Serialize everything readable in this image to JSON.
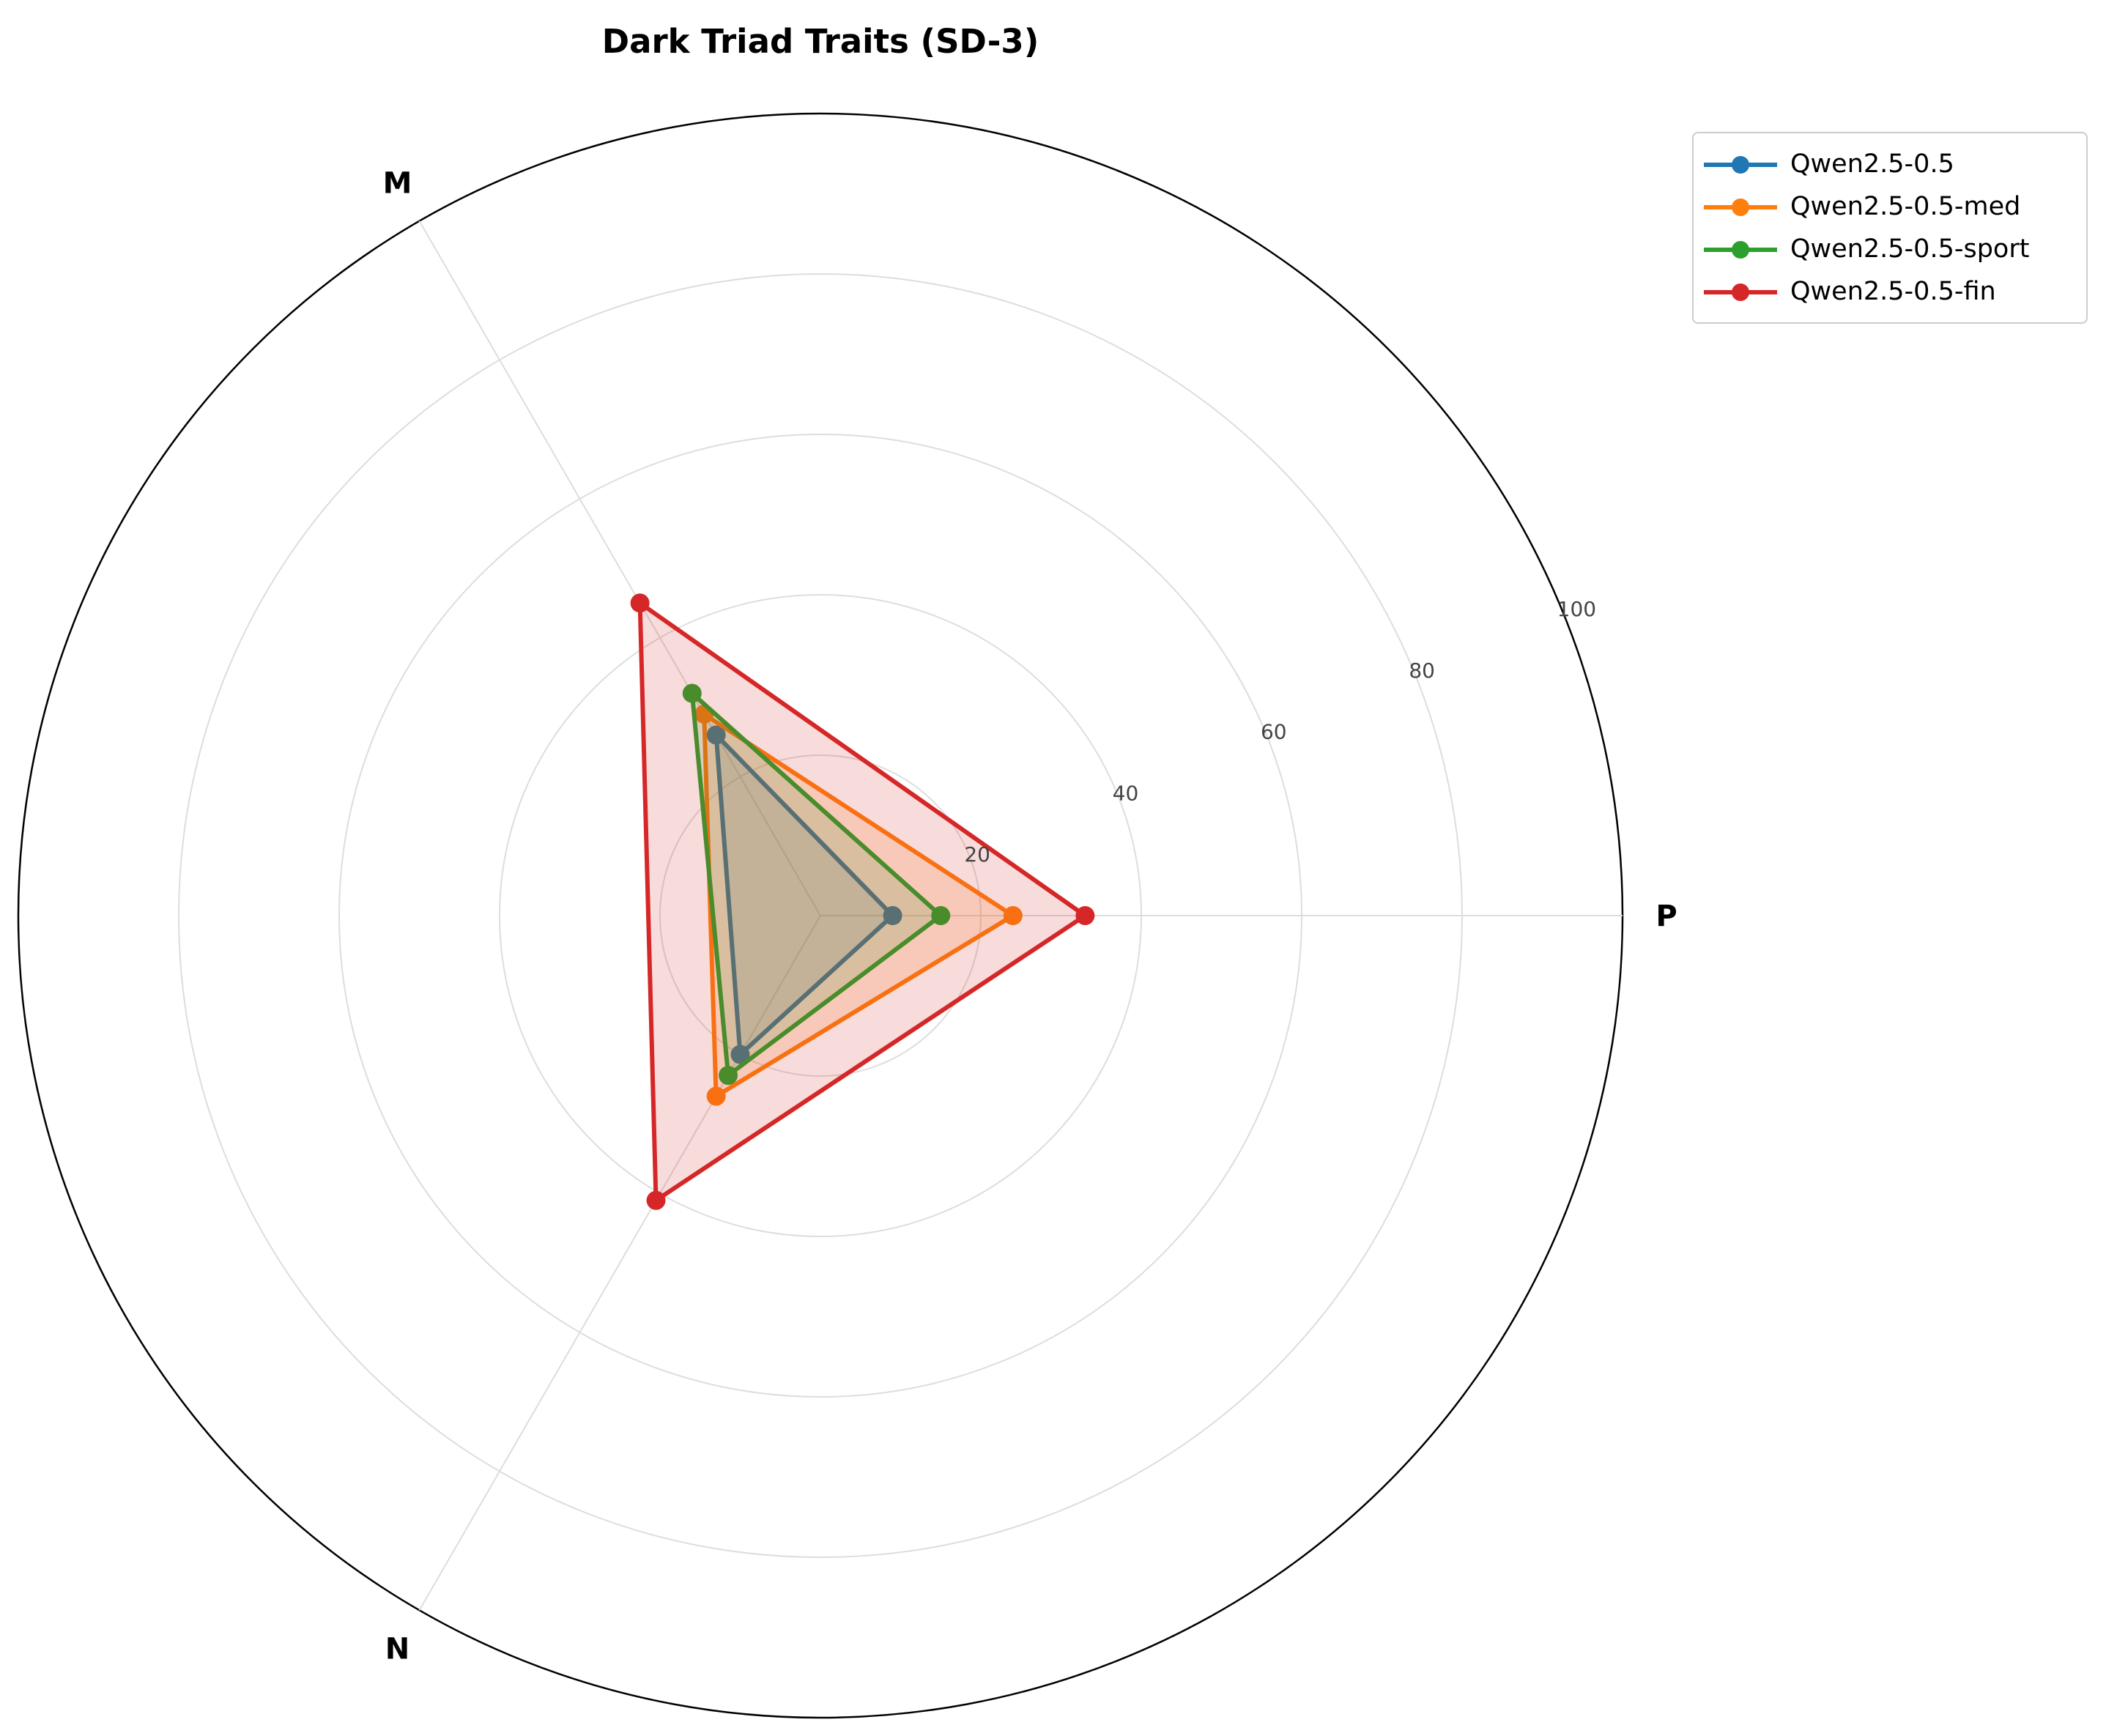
{
  "chart_data": {
    "type": "radar",
    "title": "Dark Triad Traits (SD-3)",
    "axes": [
      "P",
      "M",
      "N"
    ],
    "rlim": [
      0,
      100
    ],
    "rticks": [
      20,
      40,
      60,
      80,
      100
    ],
    "rtick_labels": [
      "20",
      "40",
      "60",
      "80",
      "100"
    ],
    "grid": true,
    "legend_position": "top-right",
    "series": [
      {
        "name": "Qwen2.5-0.5",
        "color": "#1f77b4",
        "values": [
          9,
          26,
          20
        ]
      },
      {
        "name": "Qwen2.5-0.5-med",
        "color": "#ff7f0e",
        "values": [
          24,
          29,
          26
        ]
      },
      {
        "name": "Qwen2.5-0.5-sport",
        "color": "#2ca02c",
        "values": [
          15,
          32,
          23
        ]
      },
      {
        "name": "Qwen2.5-0.5-fin",
        "color": "#d62728",
        "values": [
          33,
          45,
          41
        ]
      }
    ]
  }
}
